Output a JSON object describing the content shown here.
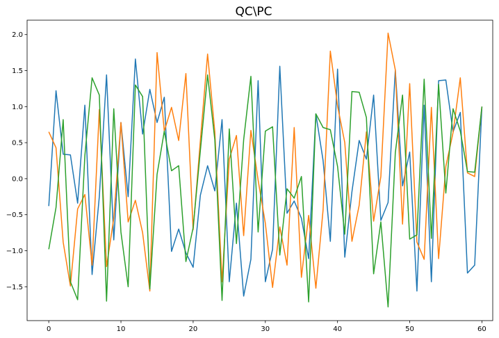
{
  "chart_data": {
    "type": "line",
    "title": "QC\\PC",
    "xlabel": "",
    "ylabel": "",
    "xlim": [
      -3,
      61.5
    ],
    "ylim": [
      -1.97,
      2.2
    ],
    "xticks": [
      0,
      10,
      20,
      30,
      40,
      50,
      60
    ],
    "yticks": [
      -1.5,
      -1.0,
      -0.5,
      0.0,
      0.5,
      1.0,
      1.5,
      2.0
    ],
    "ytick_labels": [
      "−1.5",
      "−1.0",
      "−0.5",
      "0.0",
      "0.5",
      "1.0",
      "1.5",
      "2.0"
    ],
    "grid": false,
    "x": [
      0,
      1,
      2,
      3,
      4,
      5,
      6,
      7,
      8,
      9,
      10,
      11,
      12,
      13,
      14,
      15,
      16,
      17,
      18,
      19,
      20,
      21,
      22,
      23,
      24,
      25,
      26,
      27,
      28,
      29,
      30,
      31,
      32,
      33,
      34,
      35,
      36,
      37,
      38,
      39,
      40,
      41,
      42,
      43,
      44,
      45,
      46,
      47,
      48,
      49,
      50,
      51,
      52,
      53,
      54,
      55,
      56,
      57,
      58,
      59,
      60
    ],
    "series": [
      {
        "color": "#1f77b4",
        "values": [
          -0.38,
          1.22,
          0.34,
          0.33,
          -0.34,
          1.02,
          -1.33,
          -0.25,
          1.44,
          -0.85,
          0.78,
          -0.25,
          1.66,
          0.62,
          1.24,
          0.78,
          1.13,
          -1.01,
          -0.7,
          -1.03,
          -1.23,
          -0.23,
          0.18,
          -0.17,
          0.82,
          -1.43,
          -0.34,
          -1.63,
          -1.12,
          1.36,
          -1.43,
          -0.98,
          1.56,
          -0.48,
          -0.31,
          -0.55,
          -1.11,
          0.9,
          0.25,
          -0.87,
          1.52,
          -1.09,
          -0.18,
          0.53,
          0.27,
          1.16,
          -0.58,
          -0.33,
          1.51,
          -0.1,
          0.37,
          -1.56,
          1.02,
          -1.43,
          1.36,
          1.37,
          0.65,
          0.92,
          -1.31,
          -1.2,
          1.0
        ]
      },
      {
        "color": "#ff7f0e",
        "values": [
          0.65,
          0.43,
          -0.88,
          -1.49,
          -0.42,
          -0.22,
          -1.2,
          0.96,
          -1.22,
          -0.55,
          0.78,
          -0.6,
          -0.3,
          -0.75,
          -1.56,
          1.75,
          0.66,
          0.99,
          0.53,
          1.46,
          -0.71,
          0.53,
          1.73,
          0.65,
          -1.43,
          0.27,
          0.6,
          -0.79,
          0.67,
          -0.02,
          -0.62,
          -1.51,
          -0.67,
          -1.2,
          0.71,
          -1.37,
          -0.51,
          -1.52,
          -0.43,
          1.77,
          1.01,
          0.5,
          -0.87,
          -0.37,
          0.65,
          -0.59,
          0.03,
          2.02,
          1.51,
          -0.63,
          1.32,
          -0.88,
          -1.12,
          0.99,
          -1.11,
          0.17,
          0.64,
          1.4,
          0.08,
          0.03,
          1.0
        ]
      },
      {
        "color": "#2ca02c",
        "values": [
          -0.98,
          -0.4,
          0.82,
          -1.43,
          -1.68,
          0.32,
          1.4,
          1.16,
          -1.7,
          0.97,
          -0.74,
          -1.5,
          1.3,
          1.14,
          -1.53,
          0.06,
          0.66,
          0.11,
          0.18,
          -1.15,
          -0.68,
          0.39,
          1.44,
          0.54,
          -1.69,
          0.69,
          -0.9,
          0.54,
          1.42,
          -0.74,
          0.66,
          0.72,
          -1.06,
          -0.14,
          -0.27,
          0.03,
          -1.71,
          0.9,
          0.71,
          0.68,
          0.17,
          -0.77,
          1.21,
          1.2,
          0.85,
          -1.32,
          -0.6,
          -1.78,
          0.36,
          1.16,
          -0.84,
          -0.78,
          1.38,
          -0.83,
          1.31,
          -0.2,
          0.97,
          0.66,
          0.1,
          0.09,
          1.0
        ]
      }
    ]
  }
}
